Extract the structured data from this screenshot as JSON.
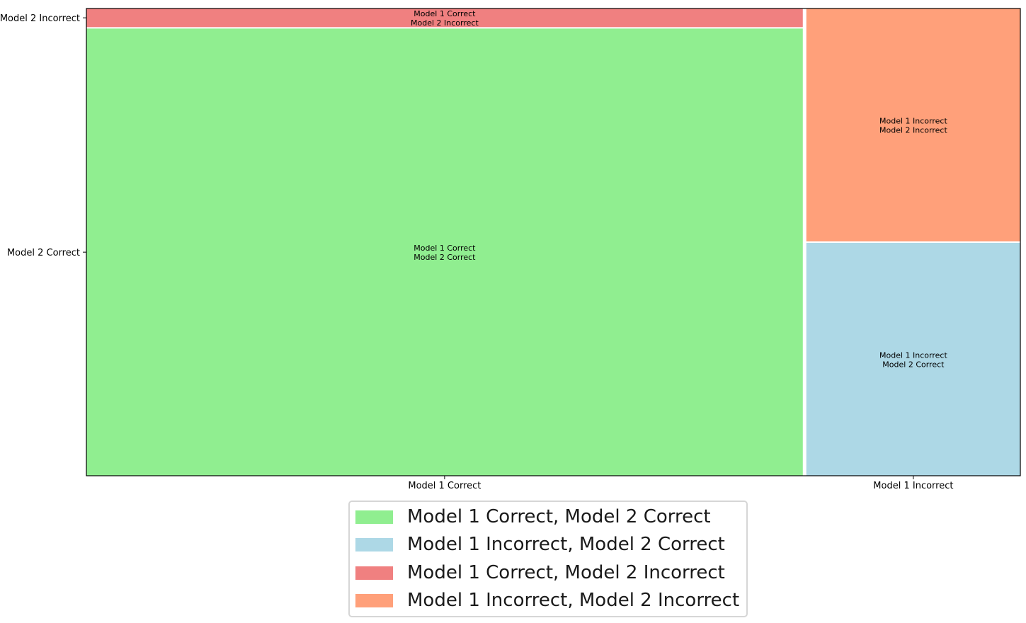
{
  "chart_data": {
    "type": "mosaic",
    "title": "",
    "xlabel": "",
    "ylabel": "",
    "x_categories": [
      "Model 1 Correct",
      "Model 1 Incorrect"
    ],
    "y_categories": [
      "Model 2 Correct",
      "Model 2 Incorrect"
    ],
    "column_proportions": [
      0.77,
      0.23
    ],
    "cells": [
      {
        "x": "Model 1 Correct",
        "y": "Model 2 Correct",
        "proportion_within_column": 0.96,
        "label_lines": [
          "Model 1 Correct",
          "Model 2 Correct"
        ],
        "color": "#90ee90"
      },
      {
        "x": "Model 1 Correct",
        "y": "Model 2 Incorrect",
        "proportion_within_column": 0.04,
        "label_lines": [
          "Model 1 Correct",
          "Model 2 Incorrect"
        ],
        "color": "#f08080"
      },
      {
        "x": "Model 1 Incorrect",
        "y": "Model 2 Correct",
        "proportion_within_column": 0.5,
        "label_lines": [
          "Model 1 Incorrect",
          "Model 2 Correct"
        ],
        "color": "#add8e6"
      },
      {
        "x": "Model 1 Incorrect",
        "y": "Model 2 Incorrect",
        "proportion_within_column": 0.5,
        "label_lines": [
          "Model 1 Incorrect",
          "Model 2 Incorrect"
        ],
        "color": "#ffa07a"
      }
    ],
    "legend": {
      "placement": "bottom-center",
      "entries": [
        {
          "label": "Model 1 Correct, Model 2 Correct",
          "color": "#90ee90"
        },
        {
          "label": "Model 1 Incorrect, Model 2 Correct",
          "color": "#add8e6"
        },
        {
          "label": "Model 1 Correct, Model 2 Incorrect",
          "color": "#f08080"
        },
        {
          "label": "Model 1 Incorrect, Model 2 Incorrect",
          "color": "#ffa07a"
        }
      ]
    },
    "grid": false
  }
}
